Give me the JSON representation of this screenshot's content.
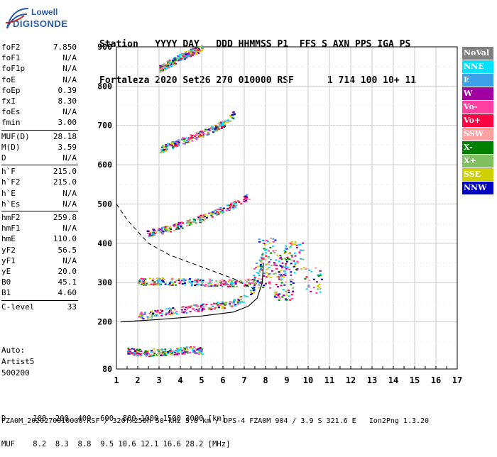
{
  "logo": {
    "line1": "Lowell",
    "line2": "DIGISONDE"
  },
  "header": {
    "row1": "Station   YYYY DAY   DDD HHMMSS P1  FFS S AXN PPS IGA PS",
    "row2": "Fortaleza 2020 Set26 270 010000 RSF      1 714 100 10+ 11"
  },
  "params": [
    {
      "k": "foF2",
      "v": "7.850"
    },
    {
      "k": "foF1",
      "v": "N/A"
    },
    {
      "k": "foF1p",
      "v": "N/A"
    },
    {
      "k": "foE",
      "v": "N/A"
    },
    {
      "k": "foEp",
      "v": "0.39"
    },
    {
      "k": "fxI",
      "v": "8.30"
    },
    {
      "k": "foEs",
      "v": "N/A"
    },
    {
      "k": "fmin",
      "v": "3.00"
    },
    {
      "k": "MUF(D)",
      "v": "28.18"
    },
    {
      "k": "M(D)",
      "v": "3.59"
    },
    {
      "k": "D",
      "v": "N/A"
    },
    {
      "k": "h`F",
      "v": "215.0"
    },
    {
      "k": "h`F2",
      "v": "215.0"
    },
    {
      "k": "h`E",
      "v": "N/A"
    },
    {
      "k": "h`Es",
      "v": "N/A"
    },
    {
      "k": "hmF2",
      "v": "259.8"
    },
    {
      "k": "hmF1",
      "v": "N/A"
    },
    {
      "k": "hmE",
      "v": "110.0"
    },
    {
      "k": "yF2",
      "v": "56.5"
    },
    {
      "k": "yF1",
      "v": "N/A"
    },
    {
      "k": "yE",
      "v": "20.0"
    },
    {
      "k": "B0",
      "v": "45.1"
    },
    {
      "k": "B1",
      "v": "4.60"
    },
    {
      "k": "C-level",
      "v": "33"
    }
  ],
  "auto": {
    "l1": "Auto:",
    "l2": "Artist5",
    "l3": "500200"
  },
  "footer": {
    "d_row": "D      100  200  400  600  800 1000 1500 3000 [km]",
    "muf_row": "MUF    8.2  8.3  8.8  9.5 10.6 12.1 16.6 28.2 [MHz]",
    "file_row": "FZA0M_2020270010000.RSF / 320fx256h 50 kHz 5.0 km / DPS-4 FZA0M 904 / 3.9 S 321.6 E   Ion2Png 1.3.20"
  },
  "legend": [
    {
      "label": "NoVal",
      "color": "#808080"
    },
    {
      "label": "NNE",
      "color": "#00e0ff"
    },
    {
      "label": "E",
      "color": "#3aa0e8"
    },
    {
      "label": "W",
      "color": "#a000a0"
    },
    {
      "label": "Vo-",
      "color": "#ff40a0"
    },
    {
      "label": "Vo+",
      "color": "#ff0040"
    },
    {
      "label": "SSW",
      "color": "#ffa0a0"
    },
    {
      "label": "X-",
      "color": "#008000"
    },
    {
      "label": "X+",
      "color": "#80c060"
    },
    {
      "label": "SSE",
      "color": "#d0d000"
    },
    {
      "label": "NNW",
      "color": "#0000c0"
    }
  ],
  "chart_data": {
    "type": "scatter",
    "title": "",
    "xlabel": "",
    "ylabel": "",
    "xlim": [
      1,
      17
    ],
    "ylim": [
      80,
      900
    ],
    "x_ticks": [
      1,
      2,
      3,
      4,
      5,
      6,
      7,
      8,
      9,
      10,
      11,
      12,
      13,
      14,
      15,
      16,
      17
    ],
    "y_ticks": [
      80,
      200,
      300,
      400,
      500,
      600,
      700,
      800,
      900
    ],
    "grid": true,
    "bands": [
      {
        "name": "Es",
        "points": [
          [
            1.5,
            126
          ],
          [
            2,
            124
          ],
          [
            2.5,
            123
          ],
          [
            3,
            124
          ],
          [
            3.5,
            125
          ],
          [
            4,
            127
          ],
          [
            4.5,
            130
          ],
          [
            5,
            128
          ]
        ]
      },
      {
        "name": "F",
        "points": [
          [
            2,
            216
          ],
          [
            3,
            225
          ],
          [
            4,
            232
          ],
          [
            5,
            238
          ],
          [
            6,
            245
          ],
          [
            6.5,
            250
          ],
          [
            7,
            262
          ],
          [
            7.5,
            290
          ],
          [
            7.8,
            360
          ]
        ]
      },
      {
        "name": "F-upper",
        "points": [
          [
            2,
            303
          ],
          [
            3,
            305
          ],
          [
            4,
            303
          ],
          [
            5,
            302
          ],
          [
            6,
            300
          ],
          [
            7,
            300
          ],
          [
            7.5,
            305
          ]
        ]
      },
      {
        "name": "2F",
        "points": [
          [
            2.4,
            425
          ],
          [
            3.5,
            440
          ],
          [
            4.5,
            455
          ],
          [
            5.5,
            475
          ],
          [
            6.5,
            500
          ],
          [
            7.2,
            520
          ]
        ]
      },
      {
        "name": "3F",
        "points": [
          [
            3,
            640
          ],
          [
            4,
            660
          ],
          [
            5,
            680
          ],
          [
            6,
            705
          ],
          [
            6.5,
            730
          ]
        ]
      },
      {
        "name": "4F",
        "points": [
          [
            3,
            845
          ],
          [
            3.5,
            860
          ],
          [
            4,
            875
          ],
          [
            4.5,
            888
          ],
          [
            5,
            898
          ]
        ]
      },
      {
        "name": "spread",
        "points": [
          [
            7.8,
            320
          ],
          [
            8,
            380
          ],
          [
            8.5,
            350
          ],
          [
            9,
            330
          ],
          [
            9.3,
            370
          ],
          [
            8.8,
            290
          ],
          [
            10.2,
            310
          ]
        ]
      }
    ],
    "profile": {
      "name": "profile",
      "points": [
        [
          1.2,
          200
        ],
        [
          3,
          206
        ],
        [
          5,
          215
        ],
        [
          6.5,
          225
        ],
        [
          7.2,
          240
        ],
        [
          7.6,
          260
        ],
        [
          7.85,
          300
        ],
        [
          7.9,
          350
        ]
      ]
    },
    "dashed": {
      "name": "model",
      "points": [
        [
          1,
          500
        ],
        [
          1.5,
          460
        ],
        [
          2.5,
          400
        ],
        [
          3.5,
          370
        ],
        [
          5,
          340
        ],
        [
          6.5,
          310
        ],
        [
          7.2,
          290
        ],
        [
          7.6,
          280
        ]
      ]
    }
  }
}
